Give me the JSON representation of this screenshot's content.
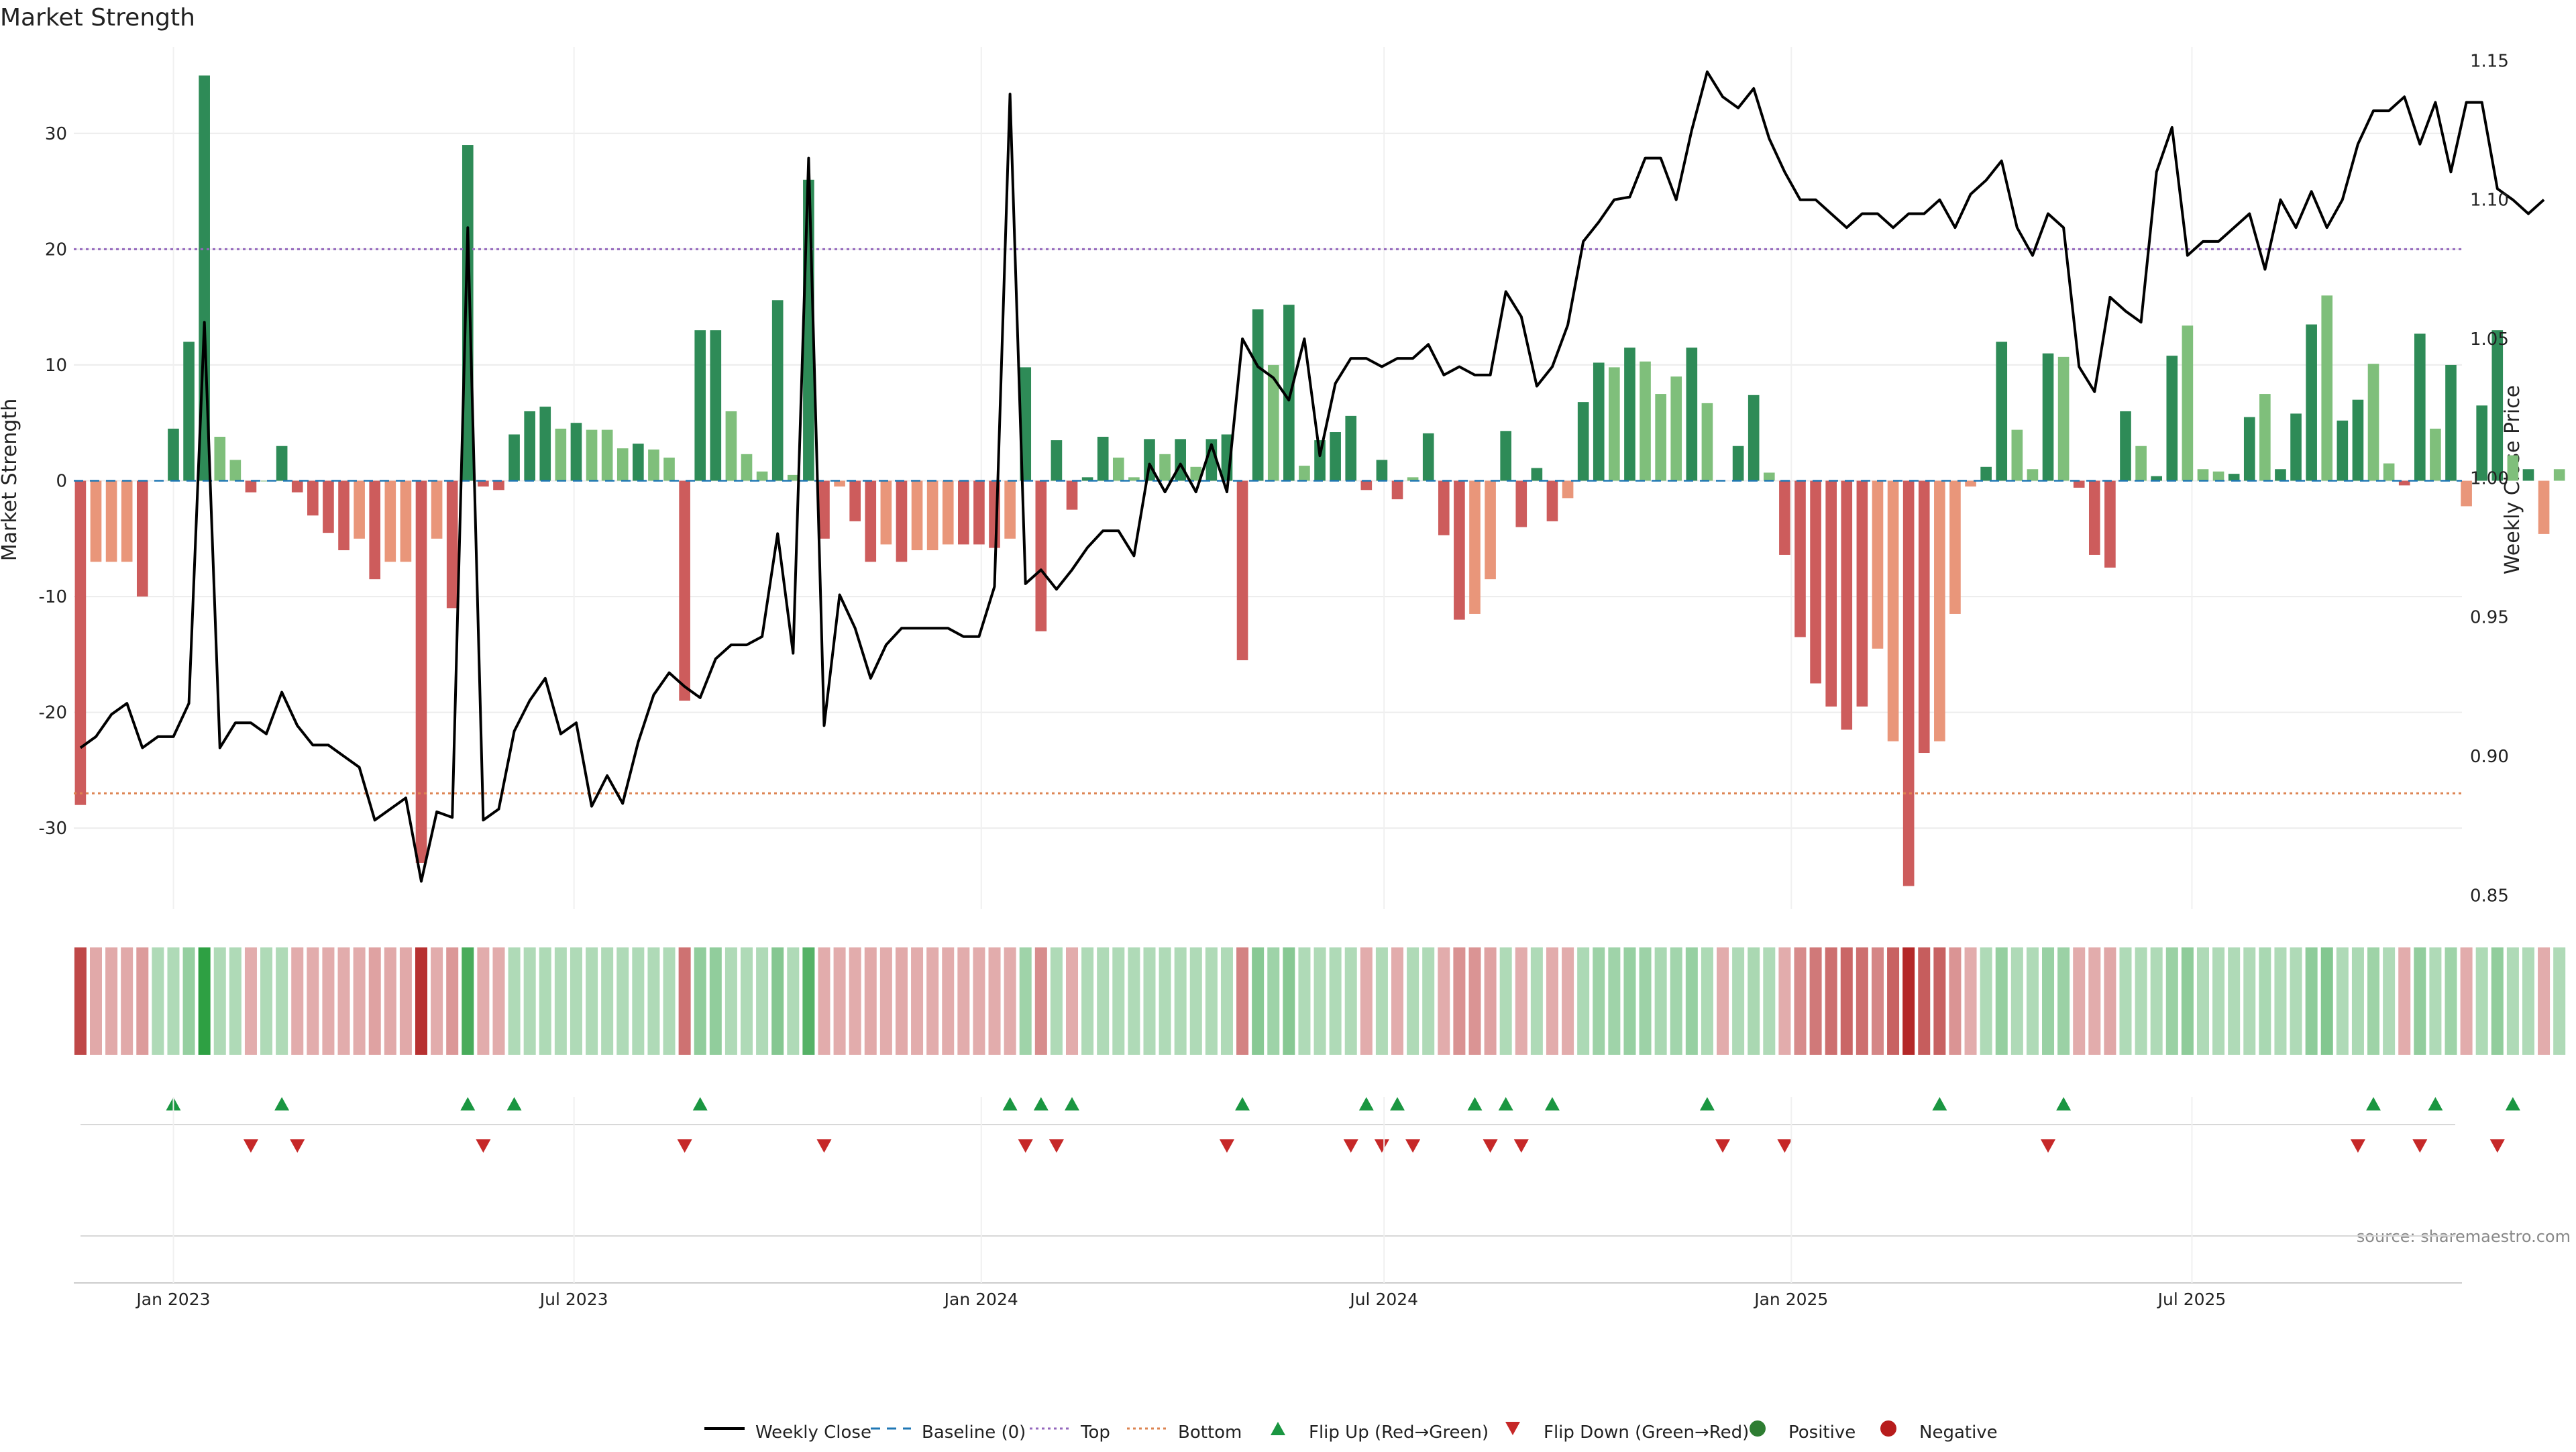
{
  "title": "Market Strength",
  "source": "source: sharemaestro.com",
  "colors": {
    "strong_green": "#2e8b57",
    "light_green": "#7fbf7b",
    "strong_red": "#cd5c5c",
    "light_red": "#e9967a",
    "close_line": "#000000",
    "baseline": "#1f77b4",
    "top_line": "#9467bd",
    "bottom_line": "#dd8452",
    "flip_up": "#1a9641",
    "flip_down": "#c62828",
    "positive": "#2e7d32",
    "negative": "#b71c1c"
  },
  "chart_data": {
    "type": "bar",
    "title": "Market Strength",
    "ylabel_left": "Market Strength",
    "ylabel_right": "Weekly Close Price",
    "ylim_left": [
      -37,
      37
    ],
    "ylim_right": [
      0.845,
      1.153
    ],
    "yticks_left": [
      -30,
      -20,
      -10,
      0,
      10,
      20,
      30
    ],
    "yticks_right": [
      "0.85",
      "0.90",
      "0.95",
      "1.00",
      "1.05",
      "1.10",
      "1.15"
    ],
    "x_start": "2022-11-20",
    "x_step_days": 7,
    "xlim": [
      "2022-11-17",
      "2025-10-31"
    ],
    "x_tick_labels": [
      {
        "date": "2023-01-01",
        "label": "Jan 2023"
      },
      {
        "date": "2023-07-01",
        "label": "Jul 2023"
      },
      {
        "date": "2024-01-01",
        "label": "Jan 2024"
      },
      {
        "date": "2024-07-01",
        "label": "Jul 2024"
      },
      {
        "date": "2025-01-01",
        "label": "Jan 2025"
      },
      {
        "date": "2025-07-01",
        "label": "Jul 2025"
      }
    ],
    "top_level": 20,
    "bottom_level": -27,
    "strength": [
      -28,
      -7,
      -7,
      -7,
      -10,
      0,
      4.5,
      12,
      35,
      3.8,
      1.8,
      -1,
      0,
      3,
      -1,
      -3,
      -4.5,
      -6,
      -5,
      -8.5,
      -7,
      -7,
      -33,
      -5,
      -11,
      29,
      -0.5,
      -0.8,
      4,
      6,
      6.4,
      4.5,
      5,
      4.4,
      4.4,
      2.8,
      3.2,
      2.7,
      2,
      -19,
      13,
      13,
      6,
      2.3,
      0.8,
      15.6,
      0.5,
      26,
      -5,
      -0.5,
      -3.5,
      -7,
      -5.5,
      -7,
      -6,
      -6,
      -5.5,
      -5.5,
      -5.5,
      -5.8,
      -5,
      9.8,
      -13,
      3.5,
      -2.5,
      0.3,
      3.8,
      2,
      0.3,
      3.6,
      2.3,
      3.6,
      1.2,
      3.6,
      4,
      -15.5,
      14.8,
      10,
      15.2,
      1.3,
      3.5,
      4.2,
      5.6,
      -0.8,
      1.8,
      -1.6,
      0.3,
      4.1,
      -4.7,
      -12,
      -11.5,
      -8.5,
      4.3,
      -4,
      1.1,
      -3.5,
      -1.5,
      6.8,
      10.2,
      9.8,
      11.5,
      10.3,
      7.5,
      9,
      11.5,
      6.7,
      -0.2,
      3,
      7.4,
      0.7,
      -6.4,
      -13.5,
      -17.5,
      -19.5,
      -21.5,
      -19.5,
      -14.5,
      -22.5,
      -35,
      -23.5,
      -22.5,
      -11.5,
      -0.5,
      1.2,
      12,
      4.4,
      1,
      11,
      10.7,
      -0.6,
      -6.4,
      -7.5,
      6,
      3,
      0.4,
      10.8,
      13.4,
      1,
      0.8,
      0.6,
      5.5,
      7.5,
      1,
      5.8,
      13.5,
      16,
      5.2,
      7,
      10.1,
      1.5,
      -0.4,
      12.7,
      4.5,
      10,
      -2.2,
      6.5,
      13,
      2.2,
      1,
      -4.6,
      1
    ],
    "bar_shade": [
      "s",
      "l",
      "l",
      "l",
      "s",
      "z",
      "s",
      "s",
      "s",
      "l",
      "l",
      "s",
      "l",
      "s",
      "s",
      "s",
      "s",
      "s",
      "l",
      "s",
      "l",
      "l",
      "s",
      "l",
      "s",
      "s",
      "s",
      "s",
      "s",
      "s",
      "s",
      "l",
      "s",
      "l",
      "l",
      "l",
      "s",
      "l",
      "l",
      "s",
      "s",
      "s",
      "l",
      "l",
      "l",
      "s",
      "l",
      "s",
      "s",
      "l",
      "s",
      "s",
      "l",
      "s",
      "l",
      "l",
      "l",
      "s",
      "s",
      "s",
      "l",
      "s",
      "s",
      "s",
      "s",
      "s",
      "s",
      "l",
      "l",
      "s",
      "l",
      "s",
      "l",
      "s",
      "s",
      "s",
      "s",
      "l",
      "s",
      "l",
      "s",
      "s",
      "s",
      "s",
      "s",
      "s",
      "l",
      "s",
      "s",
      "s",
      "l",
      "l",
      "s",
      "s",
      "s",
      "s",
      "l",
      "s",
      "s",
      "l",
      "s",
      "l",
      "l",
      "l",
      "s",
      "l",
      "z",
      "s",
      "s",
      "l",
      "s",
      "s",
      "s",
      "s",
      "s",
      "s",
      "l",
      "l",
      "s",
      "s",
      "l",
      "l",
      "l",
      "s",
      "s",
      "l",
      "l",
      "s",
      "l",
      "s",
      "s",
      "s",
      "s",
      "l",
      "s",
      "s",
      "l",
      "l",
      "l",
      "s",
      "s",
      "l",
      "s",
      "s",
      "s",
      "l",
      "s",
      "s",
      "l",
      "l",
      "s",
      "s",
      "l",
      "s",
      "l",
      "s",
      "s",
      "l",
      "s",
      "l"
    ],
    "weekly_close": [
      0.903,
      0.907,
      0.915,
      0.919,
      0.903,
      0.907,
      0.907,
      0.919,
      1.056,
      0.903,
      0.912,
      0.912,
      0.908,
      0.923,
      0.911,
      0.904,
      0.904,
      0.9,
      0.896,
      0.877,
      0.881,
      0.885,
      0.855,
      0.88,
      0.878,
      1.09,
      0.877,
      0.881,
      0.909,
      0.92,
      0.928,
      0.908,
      0.912,
      0.882,
      0.893,
      0.883,
      0.905,
      0.922,
      0.93,
      0.925,
      0.921,
      0.935,
      0.94,
      0.94,
      0.943,
      0.98,
      0.937,
      1.115,
      0.911,
      0.958,
      0.946,
      0.928,
      0.94,
      0.946,
      0.946,
      0.946,
      0.946,
      0.943,
      0.943,
      0.961,
      1.138,
      0.962,
      0.967,
      0.96,
      0.967,
      0.975,
      0.981,
      0.981,
      0.972,
      1.005,
      0.995,
      1.005,
      0.995,
      1.012,
      0.995,
      1.05,
      1.04,
      1.036,
      1.028,
      1.05,
      1.008,
      1.034,
      1.043,
      1.043,
      1.04,
      1.043,
      1.043,
      1.048,
      1.037,
      1.04,
      1.037,
      1.037,
      1.067,
      1.058,
      1.033,
      1.04,
      1.055,
      1.085,
      1.092,
      1.1,
      1.101,
      1.115,
      1.115,
      1.1,
      1.125,
      1.146,
      1.137,
      1.133,
      1.14,
      1.122,
      1.11,
      1.1,
      1.1,
      1.095,
      1.09,
      1.095,
      1.095,
      1.09,
      1.095,
      1.095,
      1.1,
      1.09,
      1.102,
      1.107,
      1.114,
      1.09,
      1.08,
      1.095,
      1.09,
      1.04,
      1.031,
      1.065,
      1.06,
      1.056,
      1.11,
      1.126,
      1.08,
      1.085,
      1.085,
      1.09,
      1.095,
      1.075,
      1.1,
      1.09,
      1.103,
      1.09,
      1.1,
      1.12,
      1.132,
      1.132,
      1.137,
      1.12,
      1.135,
      1.11,
      1.135,
      1.135,
      1.104,
      1.1,
      1.095,
      1.1
    ],
    "strength_tiles": [
      -28,
      -7,
      -7,
      -7,
      -10,
      0,
      4.5,
      12,
      35,
      3.8,
      1.8,
      -1,
      0,
      3,
      -1,
      -3,
      -4.5,
      -6,
      -5,
      -8.5,
      -7,
      -7,
      -33,
      -5,
      -11,
      29,
      -0.5,
      -0.8,
      4,
      6,
      6.4,
      4.5,
      5,
      4.4,
      4.4,
      2.8,
      3.2,
      2.7,
      2,
      -19,
      13,
      13,
      6,
      2.3,
      0.8,
      15.6,
      0.5,
      26,
      -5,
      -0.5,
      -3.5,
      -7,
      -5.5,
      -7,
      -6,
      -6,
      -5.5,
      -5.5,
      -5.5,
      -5.8,
      -5,
      9.8,
      -13,
      3.5,
      -2.5,
      0.3,
      3.8,
      2,
      0.3,
      3.6,
      2.3,
      3.6,
      1.2,
      3.6,
      4,
      -15.5,
      14.8,
      10,
      15.2,
      1.3,
      3.5,
      4.2,
      5.6,
      -0.8,
      1.8,
      -1.6,
      0.3,
      4.1,
      -4.7,
      -12,
      -11.5,
      -8.5,
      4.3,
      -4,
      1.1,
      -3.5,
      -1.5,
      6.8,
      10.2,
      9.8,
      11.5,
      10.3,
      7.5,
      9,
      11.5,
      6.7,
      -0.2,
      3,
      7.4,
      0.7,
      -6.4,
      -13.5,
      -17.5,
      -19.5,
      -21.5,
      -19.5,
      -14.5,
      -22.5,
      -35,
      -23.5,
      -22.5,
      -11.5,
      -0.5,
      1.2,
      12,
      4.4,
      1,
      11,
      10.7,
      -0.6,
      -6.4,
      -7.5,
      6,
      3,
      0.4,
      10.8,
      13.4,
      1,
      0.8,
      0.6,
      5.5,
      7.5,
      1,
      5.8,
      13.5,
      16,
      5.2,
      7,
      10.1,
      1.5,
      -0.4,
      12.7,
      4.5,
      10,
      -2.2,
      6.5,
      13,
      2.2,
      1,
      -4.6,
      1
    ],
    "flip_up_weeks": [
      6,
      13,
      25,
      28,
      40,
      60,
      62,
      64,
      75,
      83,
      85,
      90,
      92,
      95,
      105,
      120,
      128,
      148,
      152,
      157
    ],
    "flip_down_weeks": [
      11,
      14,
      26,
      39,
      48,
      61,
      63,
      74,
      82,
      84,
      86,
      91,
      93,
      106,
      110,
      127,
      147,
      151,
      156
    ]
  },
  "legend": [
    {
      "key": "close",
      "label": "Weekly Close"
    },
    {
      "key": "baseline",
      "label": "Baseline (0)"
    },
    {
      "key": "top",
      "label": "Top"
    },
    {
      "key": "bottom",
      "label": "Bottom"
    },
    {
      "key": "flip_up",
      "label": "Flip Up (Red→Green)"
    },
    {
      "key": "flip_down",
      "label": "Flip Down (Green→Red)"
    },
    {
      "key": "positive",
      "label": "Positive"
    },
    {
      "key": "negative",
      "label": "Negative"
    }
  ]
}
